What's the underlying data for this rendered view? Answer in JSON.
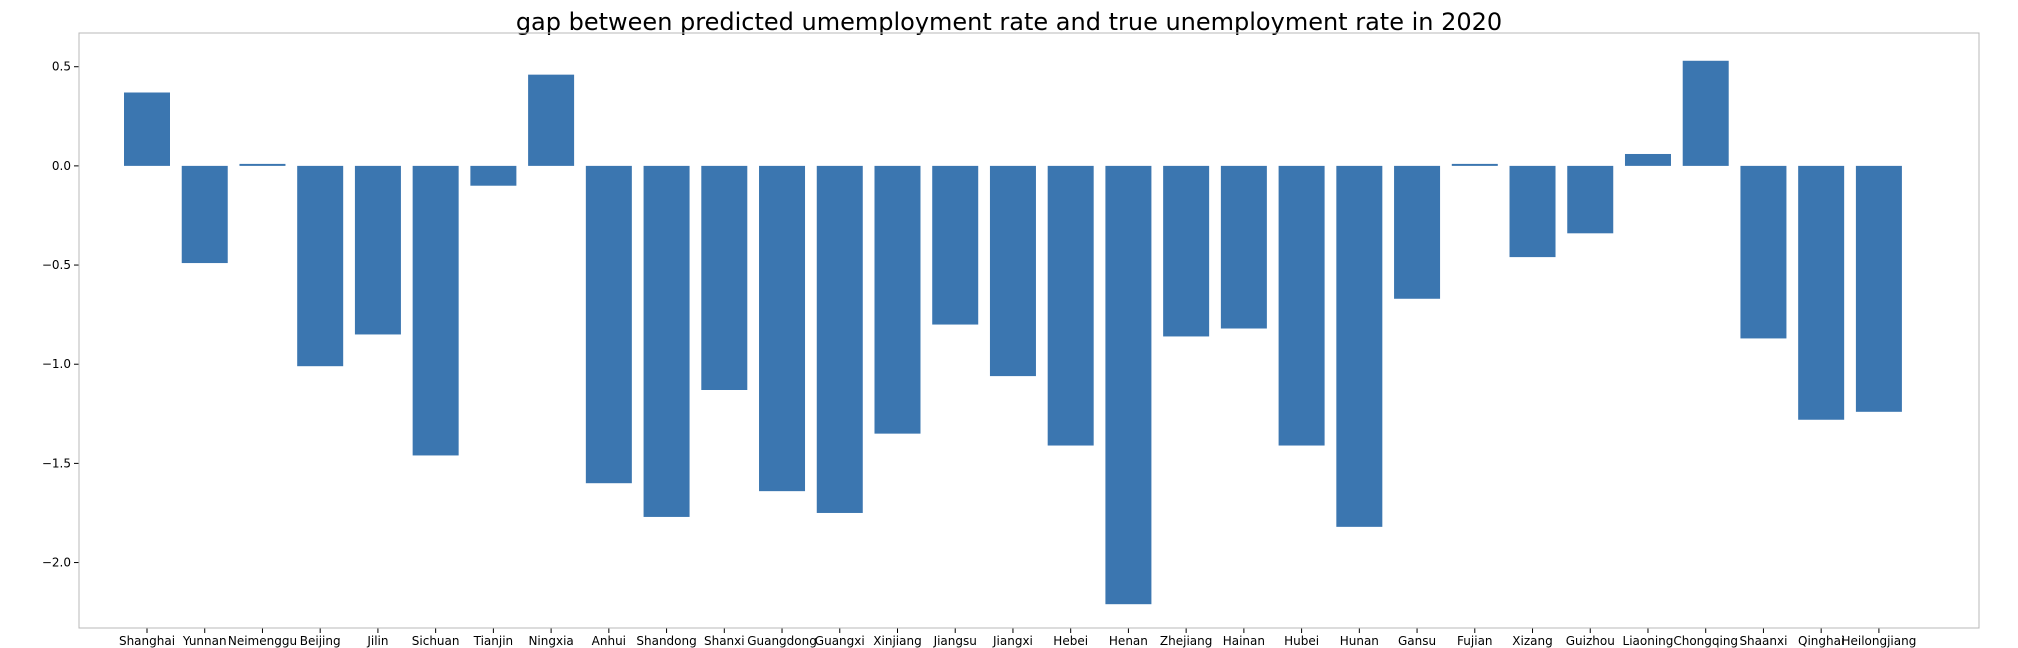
{
  "chart_data": {
    "type": "bar",
    "title": "gap between predicted umemployment rate and true unemployment rate in 2020",
    "xlabel": "",
    "ylabel": "",
    "categories": [
      "Shanghai",
      "Yunnan",
      "Neimenggu",
      "Beijing",
      "Jilin",
      "Sichuan",
      "Tianjin",
      "Ningxia",
      "Anhui",
      "Shandong",
      "Shanxi",
      "Guangdong",
      "Guangxi",
      "Xinjiang",
      "Jiangsu",
      "Jiangxi",
      "Hebei",
      "Henan",
      "Zhejiang",
      "Hainan",
      "Hubei",
      "Hunan",
      "Gansu",
      "Fujian",
      "Xizang",
      "Guizhou",
      "Liaoning",
      "Chongqing",
      "Shaanxi",
      "Qinghai",
      "Heilongjiang"
    ],
    "values": [
      0.37,
      -0.49,
      0.01,
      -1.01,
      -0.85,
      -1.46,
      -0.1,
      0.46,
      -1.6,
      -1.77,
      -1.13,
      -1.64,
      -1.75,
      -1.35,
      -0.8,
      -1.06,
      -1.41,
      -2.21,
      -0.86,
      -0.82,
      -1.41,
      -1.82,
      -0.67,
      0.01,
      -0.46,
      -0.34,
      0.06,
      0.53,
      -0.87,
      -1.28,
      -1.24
    ],
    "yticks": [
      0.5,
      0.0,
      -0.5,
      -1.0,
      -1.5,
      -2.0
    ],
    "ytick_labels": [
      "0.5",
      "0.0",
      "−0.5",
      "−1.0",
      "−1.5",
      "−2.0"
    ],
    "ylim": [
      -2.33,
      0.67
    ],
    "grid": false,
    "bar_color": "#3b76b0"
  }
}
